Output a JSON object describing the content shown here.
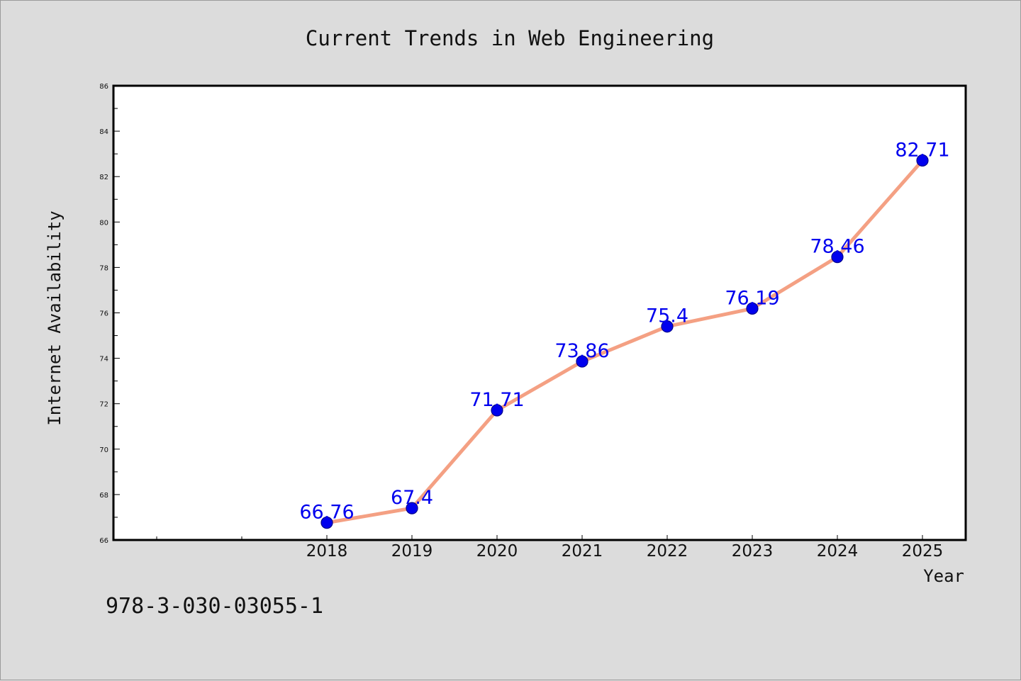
{
  "chart_data": {
    "type": "line",
    "title": "Current Trends in Web Engineering",
    "xlabel": "Year",
    "ylabel": "Internet Availability",
    "x": [
      "2018",
      "2019",
      "2020",
      "2021",
      "2022",
      "2023",
      "2024",
      "2025"
    ],
    "series": [
      {
        "values": [
          66.76,
          67.4,
          71.71,
          73.86,
          75.4,
          76.19,
          78.46,
          82.71
        ],
        "labels": [
          "66.76",
          "67.4",
          "71.71",
          "73.86",
          "75.4",
          "76.19",
          "78.46",
          "82.71"
        ],
        "line_color": "#f4a083",
        "marker_color": "#0000ee",
        "label_color": "#0000ee"
      }
    ],
    "ylim": [
      66,
      86
    ],
    "yticks": [
      "66",
      "68",
      "70",
      "72",
      "74",
      "76",
      "78",
      "80",
      "82",
      "84",
      "86"
    ],
    "grid": false,
    "legend": "none"
  },
  "footer_text": "978-3-030-03055-1"
}
